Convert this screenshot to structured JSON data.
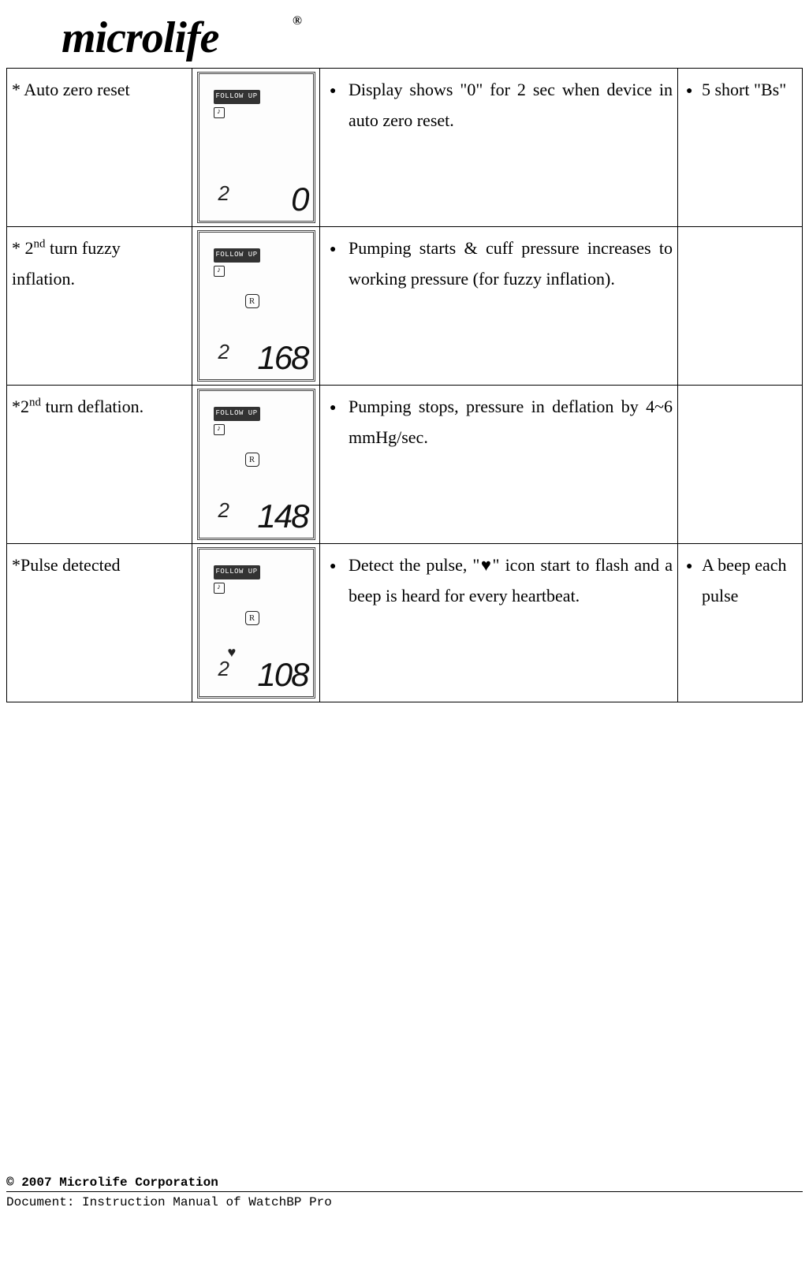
{
  "logo_text": "microlife",
  "logo_reg": "®",
  "rows": [
    {
      "step_html": "* Auto zero reset",
      "lcd": {
        "follow": "FOLLOW UP",
        "small": "2",
        "big": "0",
        "afib": true,
        "circled": "",
        "heart": ""
      },
      "desc_html": "Display shows \"0\" for 2 sec when device in auto zero reset.",
      "beep_html": "5 short \"Bs\""
    },
    {
      "step_html": "* 2<sup>nd</sup> turn fuzzy inflation.",
      "lcd": {
        "follow": "FOLLOW UP",
        "small": "2",
        "big": "168",
        "afib": true,
        "circled": "R",
        "heart": ""
      },
      "desc_html": "Pumping starts & cuff pressure increases to working pressure (for fuzzy inflation).",
      "beep_html": ""
    },
    {
      "step_html": "*2<sup>nd</sup> turn deflation.",
      "lcd": {
        "follow": "FOLLOW UP",
        "small": "2",
        "big": "148",
        "afib": true,
        "circled": "R",
        "heart": ""
      },
      "desc_html": "Pumping stops, pressure in deflation by 4~6 mmHg/sec.",
      "beep_html": ""
    },
    {
      "step_html": "*Pulse detected",
      "lcd": {
        "follow": "FOLLOW UP",
        "small": "2",
        "big": "108",
        "afib": true,
        "circled": "R",
        "heart": "♥"
      },
      "desc_html": "Detect the pulse, \"♥\" icon start to flash and a beep is heard for every heartbeat.",
      "beep_html": "A beep each pulse"
    }
  ],
  "footer": {
    "copyright": "© 2007 Microlife Corporation",
    "docline": "Document: Instruction Manual of WatchBP Pro"
  }
}
